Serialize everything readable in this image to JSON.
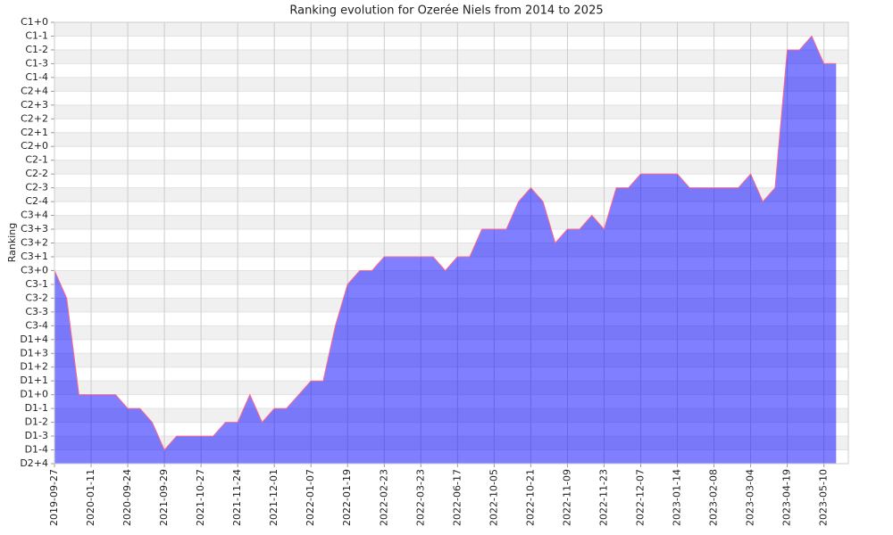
{
  "chart_data": {
    "type": "area",
    "title": "Ranking evolution for Ozerée Niels from 2014 to 2025",
    "y_label": "Ranking",
    "categories": [
      "2019-09-27",
      null,
      null,
      "2020-01-11",
      null,
      null,
      "2020-09-24",
      null,
      null,
      "2021-09-29",
      null,
      null,
      "2021-10-27",
      null,
      null,
      "2021-11-24",
      null,
      null,
      "2021-12-01",
      null,
      null,
      "2022-01-07",
      null,
      null,
      "2022-01-19",
      null,
      null,
      "2022-02-23",
      null,
      null,
      "2022-03-23",
      null,
      null,
      "2022-06-17",
      null,
      null,
      "2022-10-05",
      null,
      null,
      "2022-10-21",
      null,
      null,
      "2022-11-09",
      null,
      null,
      "2022-11-23",
      null,
      null,
      "2022-12-07",
      null,
      null,
      "2023-01-14",
      null,
      null,
      "2023-02-08",
      null,
      null,
      "2023-03-04",
      null,
      null,
      "2023-04-19",
      null,
      null,
      "2023-05-10",
      null
    ],
    "values": [
      14,
      12,
      5,
      5,
      5,
      5,
      4,
      4,
      3,
      1,
      2,
      2,
      2,
      2,
      3,
      3,
      5,
      3,
      4,
      4,
      5,
      6,
      6,
      10,
      13,
      14,
      14,
      15,
      15,
      15,
      15,
      15,
      14,
      15,
      15,
      17,
      17,
      17,
      19,
      20,
      19,
      16,
      17,
      17,
      18,
      17,
      20,
      20,
      21,
      21,
      21,
      21,
      20,
      20,
      20,
      20,
      20,
      21,
      19,
      20,
      30,
      30,
      31,
      29,
      29
    ],
    "color": "#0000ff",
    "line_color": "#ff6688",
    "ylim": [
      0,
      32
    ],
    "yticks": [
      {
        "value": 0,
        "label": "D2+4"
      },
      {
        "value": 1,
        "label": "D1-4"
      },
      {
        "value": 2,
        "label": "D1-3"
      },
      {
        "value": 3,
        "label": "D1-2"
      },
      {
        "value": 4,
        "label": "D1-1"
      },
      {
        "value": 5,
        "label": "D1+0"
      },
      {
        "value": 6,
        "label": "D1+1"
      },
      {
        "value": 7,
        "label": "D1+2"
      },
      {
        "value": 8,
        "label": "D1+3"
      },
      {
        "value": 9,
        "label": "D1+4"
      },
      {
        "value": 10,
        "label": "C3-4"
      },
      {
        "value": 11,
        "label": "C3-3"
      },
      {
        "value": 12,
        "label": "C3-2"
      },
      {
        "value": 13,
        "label": "C3-1"
      },
      {
        "value": 14,
        "label": "C3+0"
      },
      {
        "value": 15,
        "label": "C3+1"
      },
      {
        "value": 16,
        "label": "C3+2"
      },
      {
        "value": 17,
        "label": "C3+3"
      },
      {
        "value": 18,
        "label": "C3+4"
      },
      {
        "value": 19,
        "label": "C2-4"
      },
      {
        "value": 20,
        "label": "C2-3"
      },
      {
        "value": 21,
        "label": "C2-2"
      },
      {
        "value": 22,
        "label": "C2-1"
      },
      {
        "value": 23,
        "label": "C2+0"
      },
      {
        "value": 24,
        "label": "C2+1"
      },
      {
        "value": 25,
        "label": "C2+2"
      },
      {
        "value": 26,
        "label": "C2+3"
      },
      {
        "value": 27,
        "label": "C2+4"
      },
      {
        "value": 28,
        "label": "C1-4"
      },
      {
        "value": 29,
        "label": "C1-3"
      },
      {
        "value": 30,
        "label": "C1-2"
      },
      {
        "value": 31,
        "label": "C1-1"
      },
      {
        "value": 32,
        "label": "C1+0"
      }
    ],
    "grid": true
  }
}
